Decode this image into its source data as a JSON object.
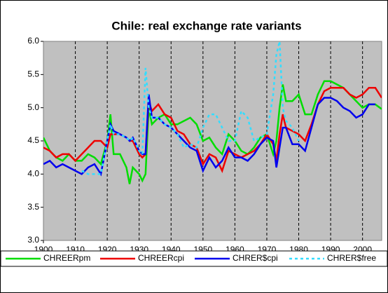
{
  "chart_data": {
    "type": "line",
    "title": "Chile: real exchange rate variants",
    "x": [
      1900,
      1902,
      1904,
      1906,
      1908,
      1910,
      1912,
      1914,
      1916,
      1918,
      1920,
      1921,
      1922,
      1924,
      1926,
      1927,
      1928,
      1930,
      1931,
      1932,
      1933,
      1934,
      1936,
      1938,
      1940,
      1942,
      1944,
      1946,
      1948,
      1950,
      1952,
      1954,
      1956,
      1958,
      1960,
      1962,
      1964,
      1966,
      1968,
      1970,
      1972,
      1973,
      1974,
      1975,
      1976,
      1978,
      1980,
      1982,
      1984,
      1986,
      1988,
      1990,
      1992,
      1994,
      1996,
      1998,
      2000,
      2002,
      2004,
      2006
    ],
    "series": [
      {
        "name": "CHREERpm",
        "color": "#00dd00",
        "dash": false,
        "values": [
          4.55,
          4.35,
          4.25,
          4.2,
          4.3,
          4.2,
          4.2,
          4.3,
          4.25,
          4.15,
          4.5,
          4.9,
          4.3,
          4.3,
          4.1,
          3.85,
          4.1,
          4.0,
          3.9,
          4.0,
          5.0,
          4.75,
          4.85,
          4.9,
          4.75,
          4.75,
          4.8,
          4.85,
          4.75,
          4.5,
          4.55,
          4.4,
          4.3,
          4.6,
          4.5,
          4.35,
          4.3,
          4.4,
          4.55,
          4.6,
          4.3,
          4.5,
          5.0,
          5.35,
          5.1,
          5.1,
          5.2,
          4.9,
          4.9,
          5.2,
          5.4,
          5.4,
          5.35,
          5.3,
          5.2,
          5.1,
          5.0,
          5.05,
          5.05,
          4.98
        ]
      },
      {
        "name": "CHREERcpi",
        "color": "#ee0000",
        "dash": false,
        "values": [
          4.4,
          4.35,
          4.25,
          4.3,
          4.3,
          4.2,
          4.3,
          4.4,
          4.5,
          4.5,
          4.4,
          4.6,
          4.6,
          4.6,
          4.55,
          4.5,
          4.5,
          4.3,
          4.25,
          4.3,
          5.1,
          4.95,
          5.05,
          4.9,
          4.85,
          4.65,
          4.6,
          4.45,
          4.4,
          4.15,
          4.3,
          4.25,
          4.05,
          4.35,
          4.3,
          4.25,
          4.3,
          4.35,
          4.45,
          4.6,
          4.45,
          4.2,
          4.6,
          4.9,
          4.7,
          4.65,
          4.6,
          4.5,
          4.75,
          5.05,
          5.25,
          5.3,
          5.3,
          5.3,
          5.2,
          5.15,
          5.2,
          5.3,
          5.3,
          5.15
        ]
      },
      {
        "name": "CHRER$cpi",
        "color": "#0000ee",
        "dash": false,
        "values": [
          4.15,
          4.2,
          4.1,
          4.15,
          4.1,
          4.05,
          4.0,
          4.1,
          4.15,
          4.0,
          4.5,
          4.75,
          4.65,
          4.6,
          4.55,
          4.5,
          4.55,
          4.35,
          4.3,
          4.3,
          5.2,
          4.85,
          4.85,
          4.75,
          4.7,
          4.6,
          4.5,
          4.4,
          4.35,
          4.05,
          4.25,
          4.1,
          4.2,
          4.4,
          4.25,
          4.25,
          4.2,
          4.3,
          4.45,
          4.55,
          4.5,
          4.1,
          4.4,
          4.7,
          4.7,
          4.45,
          4.45,
          4.35,
          4.7,
          5.05,
          5.15,
          5.15,
          5.1,
          5.0,
          4.95,
          4.85,
          4.9,
          5.05,
          5.05,
          null
        ]
      },
      {
        "name": "CHRER$free",
        "color": "#33ddff",
        "dash": true,
        "values": [
          null,
          null,
          null,
          null,
          null,
          null,
          4.05,
          4.0,
          4.0,
          4.0,
          4.5,
          4.75,
          4.6,
          4.6,
          4.55,
          4.5,
          4.55,
          4.35,
          4.3,
          5.6,
          5.0,
          4.85,
          4.85,
          4.75,
          4.7,
          4.6,
          4.4,
          4.45,
          4.4,
          4.7,
          4.9,
          4.9,
          4.7,
          4.5,
          4.5,
          4.95,
          4.85,
          4.5,
          4.55,
          4.6,
          5.2,
          5.8,
          6.0,
          5.0,
          4.8,
          4.7,
          4.5,
          null,
          null,
          null,
          null,
          null,
          null,
          null,
          null,
          null,
          null,
          null,
          null,
          null
        ]
      }
    ],
    "xlim": [
      1900,
      2006
    ],
    "xticks": [
      1900,
      1910,
      1920,
      1930,
      1940,
      1950,
      1960,
      1970,
      1980,
      1990,
      2000
    ],
    "ylim": [
      3,
      6
    ],
    "yticks": [
      {
        "value": 3,
        "label": "3.0"
      },
      3.5,
      {
        "value": 4,
        "label": "4.0"
      },
      4.5,
      {
        "value": 5,
        "label": "5.0"
      },
      5.5,
      {
        "value": 6,
        "label": "6.0"
      }
    ],
    "grid": true,
    "legend": "bottom"
  }
}
